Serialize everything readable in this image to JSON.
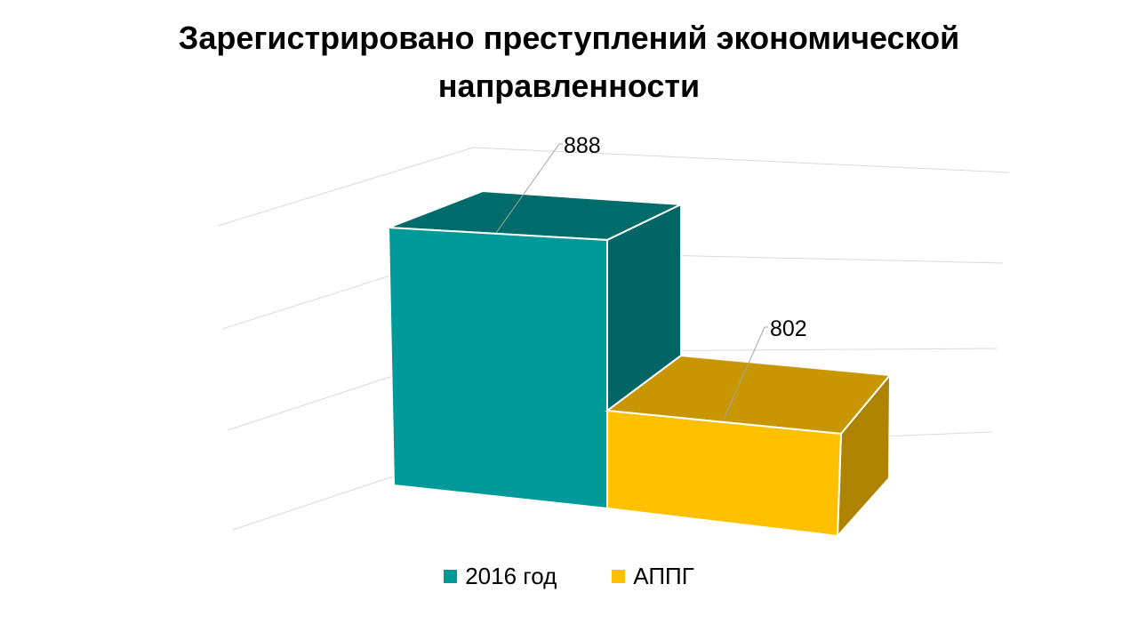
{
  "chart_data": {
    "type": "bar",
    "title": "Зарегистрировано преступлений экономической направленности",
    "categories": [
      ""
    ],
    "series": [
      {
        "name": "2016 год",
        "values": [
          888
        ],
        "color": "#009999"
      },
      {
        "name": "АППГ",
        "values": [
          802
        ],
        "color": "#FFC000"
      }
    ],
    "ylim": [
      600,
      900
    ],
    "grid": true,
    "legend_position": "bottom",
    "style": "3d-column"
  }
}
